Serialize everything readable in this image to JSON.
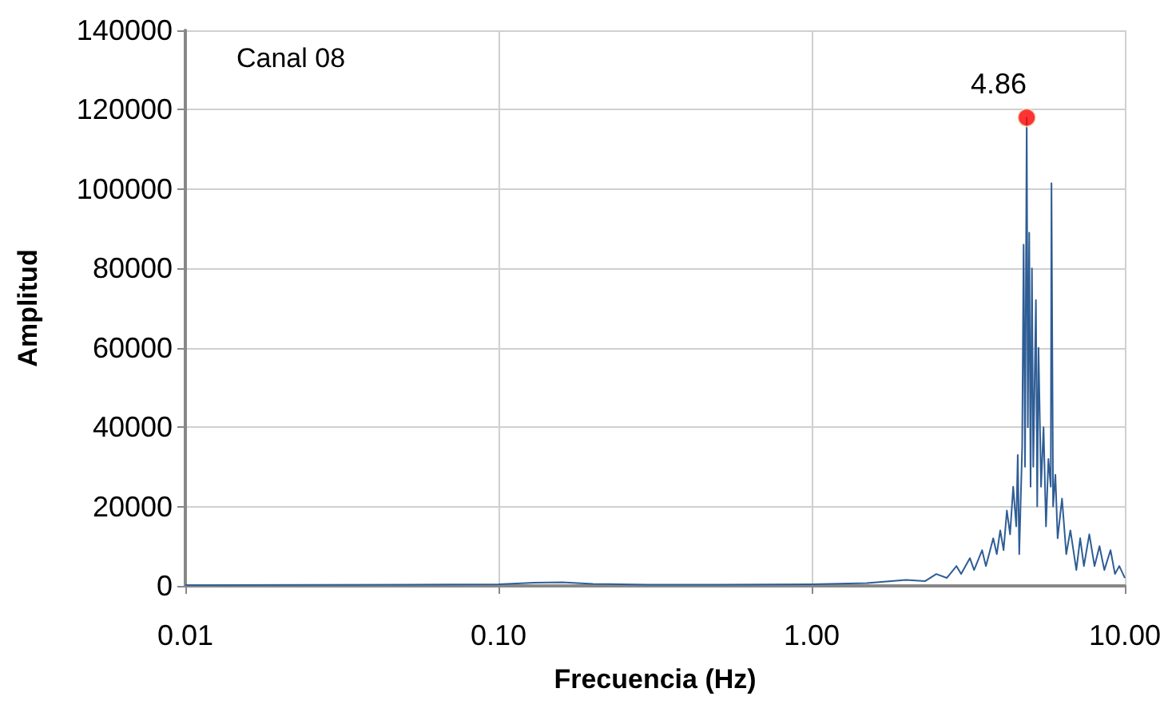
{
  "chart_data": {
    "type": "line",
    "xlabel": "Frecuencia (Hz)",
    "ylabel": "Amplitud",
    "annotations": [
      "Canal 08",
      {
        "text": "4.86",
        "x": 4.86,
        "y": 118000
      }
    ],
    "log": "x",
    "grid": true,
    "marker": "none",
    "line_style": "solid",
    "xlim": [
      0.01,
      10
    ],
    "xticks": [
      {
        "value": 0.01,
        "label": "0.01"
      },
      {
        "value": 0.1,
        "label": "0.10"
      },
      {
        "value": 1,
        "label": "1.00"
      },
      {
        "value": 10,
        "label": "10.00"
      }
    ],
    "ylim": [
      0,
      140000
    ],
    "yticks": [
      0,
      20000,
      40000,
      60000,
      80000,
      100000,
      120000,
      140000
    ],
    "series": [
      {
        "color": "#2f5d95",
        "x": [
          0.01,
          0.05,
          0.1,
          0.13,
          0.16,
          0.2,
          0.3,
          0.5,
          1.0,
          1.5,
          2.0,
          2.3,
          2.5,
          2.7,
          2.9,
          3.0,
          3.2,
          3.3,
          3.5,
          3.6,
          3.8,
          3.9,
          4.0,
          4.1,
          4.2,
          4.3,
          4.4,
          4.5,
          4.55,
          4.6,
          4.7,
          4.75,
          4.8,
          4.86,
          4.9,
          4.95,
          5.0,
          5.05,
          5.1,
          5.2,
          5.25,
          5.3,
          5.4,
          5.5,
          5.6,
          5.7,
          5.8,
          5.83,
          5.9,
          6.0,
          6.1,
          6.3,
          6.5,
          6.7,
          7.0,
          7.2,
          7.4,
          7.7,
          8.0,
          8.3,
          8.6,
          9.0,
          9.3,
          9.6,
          10.0
        ],
        "values": [
          200,
          300,
          400,
          800,
          900,
          500,
          300,
          300,
          400,
          700,
          1500,
          1200,
          3000,
          2000,
          5000,
          3000,
          7000,
          4000,
          9000,
          5000,
          12000,
          8000,
          14000,
          9000,
          19000,
          13000,
          25000,
          15000,
          33000,
          8000,
          35000,
          86000,
          30000,
          118000,
          40000,
          89000,
          25000,
          80000,
          30000,
          72000,
          20000,
          60000,
          25000,
          40000,
          15000,
          32000,
          25000,
          101500,
          20000,
          28000,
          12000,
          22000,
          8000,
          14000,
          4000,
          12000,
          5000,
          13000,
          5000,
          10000,
          4000,
          9000,
          3000,
          5000,
          2000
        ]
      },
      {
        "type": "scatter",
        "color": "#ff0000",
        "marker": "circle",
        "x": [
          4.86
        ],
        "values": [
          118000
        ]
      }
    ]
  }
}
